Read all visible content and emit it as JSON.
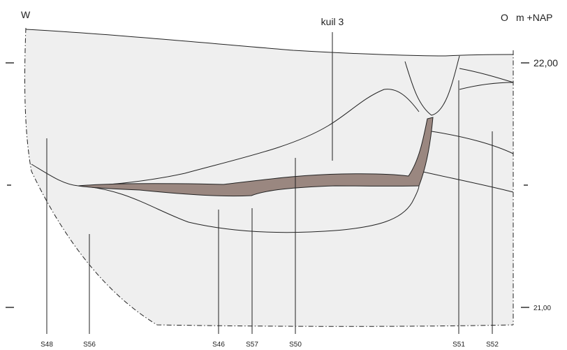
{
  "header": {
    "west": "W",
    "east": "O",
    "unit": "m +NAP"
  },
  "feature_label": "kuil 3",
  "levels": {
    "upper": "22,00",
    "lower": "21,00"
  },
  "left_marks": [
    "–",
    "-",
    "–"
  ],
  "right_marks": [
    "-"
  ],
  "samples": [
    "S48",
    "S56",
    "S46",
    "S57",
    "S50",
    "S51",
    "S52"
  ],
  "colors": {
    "background": "#ffffff",
    "section_fill": "#efefef",
    "layer_fill": "#9a8780",
    "line": "#222222"
  }
}
